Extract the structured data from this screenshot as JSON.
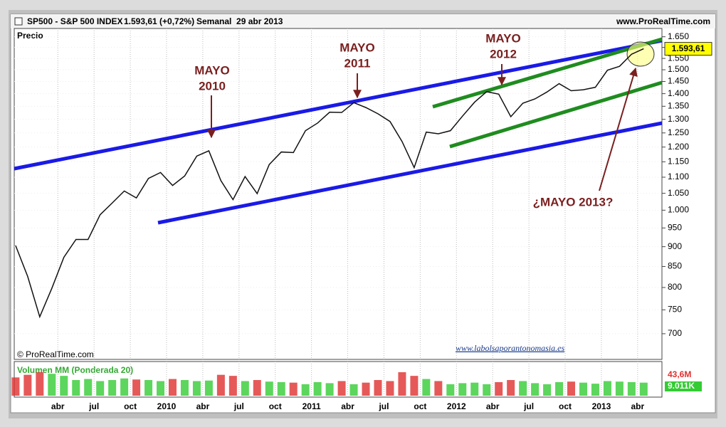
{
  "chart_data": {
    "type": "line",
    "title": "SP500 - S&P 500 INDEX",
    "price_change": "1.593,61 (+0,72%)",
    "period": "Semanal  29 abr 2013",
    "source": "www.ProRealTime.com",
    "copyright": "© ProRealTime.com",
    "panel_label": "Precio",
    "watermark": "www.labolsaporantonomasia.es",
    "log_scale": true,
    "color": "#111111",
    "x": [
      "2008-12",
      "2009-01",
      "2009-02",
      "2009-03",
      "2009-04",
      "2009-05",
      "2009-06",
      "2009-07",
      "2009-08",
      "2009-09",
      "2009-10",
      "2009-11",
      "2009-12",
      "2010-01",
      "2010-02",
      "2010-03",
      "2010-04",
      "2010-05",
      "2010-06",
      "2010-07",
      "2010-08",
      "2010-09",
      "2010-10",
      "2010-11",
      "2010-12",
      "2011-01",
      "2011-02",
      "2011-03",
      "2011-04",
      "2011-05",
      "2011-06",
      "2011-07",
      "2011-08",
      "2011-09",
      "2011-10",
      "2011-11",
      "2011-12",
      "2012-01",
      "2012-02",
      "2012-03",
      "2012-04",
      "2012-05",
      "2012-06",
      "2012-07",
      "2012-08",
      "2012-09",
      "2012-10",
      "2012-11",
      "2012-12",
      "2013-01",
      "2013-02",
      "2013-03",
      "2013-04"
    ],
    "values": [
      903,
      826,
      735,
      798,
      873,
      919,
      919,
      987,
      1021,
      1057,
      1036,
      1096,
      1115,
      1074,
      1104,
      1169,
      1187,
      1089,
      1031,
      1102,
      1049,
      1141,
      1183,
      1181,
      1258,
      1286,
      1327,
      1326,
      1364,
      1345,
      1321,
      1292,
      1219,
      1131,
      1253,
      1247,
      1258,
      1312,
      1366,
      1408,
      1398,
      1310,
      1362,
      1379,
      1407,
      1441,
      1412,
      1416,
      1426,
      1498,
      1515,
      1569,
      1594
    ],
    "ylim": [
      650,
      1690
    ],
    "yticks": [
      {
        "value": 1650,
        "label": "1.650"
      },
      {
        "value": 1600,
        "label": "1.600"
      },
      {
        "value": 1550,
        "label": "1.550"
      },
      {
        "value": 1500,
        "label": "1.500"
      },
      {
        "value": 1450,
        "label": "1.450"
      },
      {
        "value": 1400,
        "label": "1.400"
      },
      {
        "value": 1350,
        "label": "1.350"
      },
      {
        "value": 1300,
        "label": "1.300"
      },
      {
        "value": 1250,
        "label": "1.250"
      },
      {
        "value": 1200,
        "label": "1.200"
      },
      {
        "value": 1150,
        "label": "1.150"
      },
      {
        "value": 1100,
        "label": "1.100"
      },
      {
        "value": 1050,
        "label": "1.050"
      },
      {
        "value": 1000,
        "label": "1.000"
      },
      950,
      900,
      850,
      800,
      750,
      700
    ],
    "xticks": [
      {
        "value": "2009-04",
        "label": "abr"
      },
      {
        "value": "2009-07",
        "label": "jul"
      },
      {
        "value": "2009-10",
        "label": "oct"
      },
      {
        "value": "2010-01",
        "label": "2010"
      },
      {
        "value": "2010-04",
        "label": "abr"
      },
      {
        "value": "2010-07",
        "label": "jul"
      },
      {
        "value": "2010-10",
        "label": "oct"
      },
      {
        "value": "2011-01",
        "label": "2011"
      },
      {
        "value": "2011-04",
        "label": "abr"
      },
      {
        "value": "2011-07",
        "label": "jul"
      },
      {
        "value": "2011-10",
        "label": "oct"
      },
      {
        "value": "2012-01",
        "label": "2012"
      },
      {
        "value": "2012-04",
        "label": "abr"
      },
      {
        "value": "2012-07",
        "label": "jul"
      },
      {
        "value": "2012-10",
        "label": "oct"
      },
      {
        "value": "2013-01",
        "label": "2013"
      },
      {
        "value": "2013-04",
        "label": "abr"
      }
    ],
    "last_value": {
      "value": 1593.61,
      "label": "1.593,61"
    },
    "annotations": [
      {
        "lines": [
          "MAYO",
          "2010"
        ]
      },
      {
        "lines": [
          "MAYO",
          "2011"
        ]
      },
      {
        "lines": [
          "MAYO",
          "2012"
        ]
      },
      {
        "lines": [
          "¿MAYO 2013?"
        ]
      }
    ],
    "volume": {
      "label": "Volumen MM (Ponderada 20)",
      "values": [
        35,
        40,
        45,
        42,
        38,
        30,
        32,
        28,
        30,
        33,
        31,
        30,
        28,
        32,
        30,
        28,
        29,
        40,
        38,
        28,
        30,
        27,
        26,
        25,
        22,
        26,
        24,
        28,
        22,
        25,
        30,
        28,
        45,
        38,
        32,
        28,
        22,
        24,
        25,
        22,
        26,
        30,
        28,
        24,
        22,
        26,
        27,
        25,
        23,
        28,
        27,
        26,
        25
      ],
      "ylim": [
        0,
        60
      ],
      "up_color": "#33cc33",
      "down_color": "#e03030",
      "max_label": "43,6M",
      "last_label": "9.011K"
    }
  }
}
